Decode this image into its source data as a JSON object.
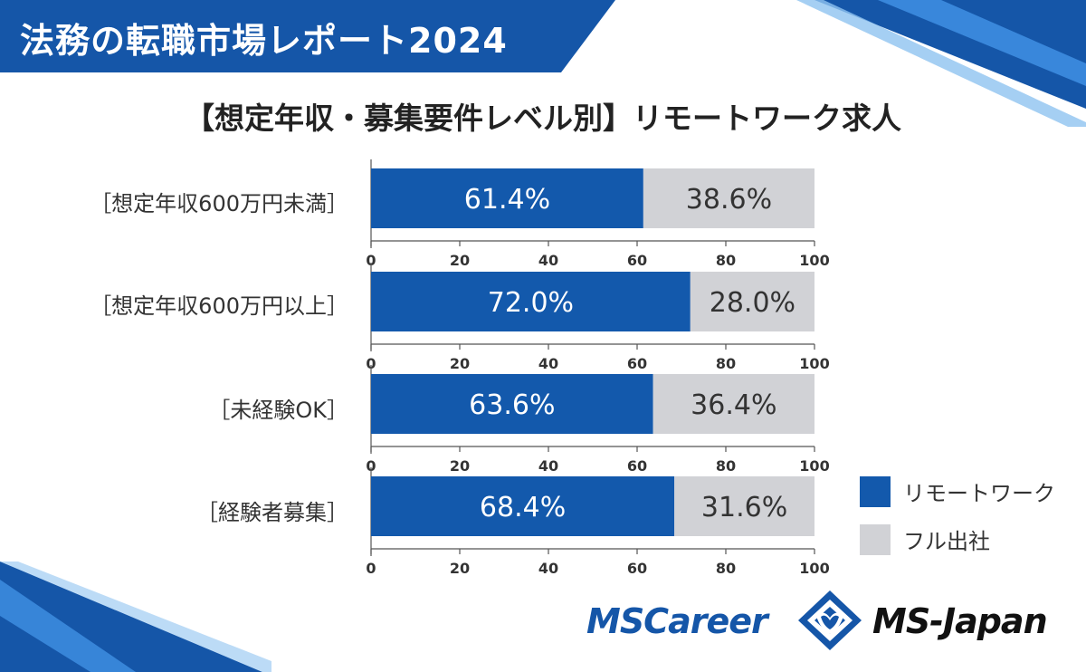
{
  "header": {
    "title": "法務の転職市場レポート2024",
    "subtitle": "【想定年収・募集要件レベル別】リモートワーク求人"
  },
  "colors": {
    "brand_blue": "#1556a8",
    "remote": "#1359ac",
    "office": "#d1d2d6"
  },
  "chart_data": {
    "type": "bar",
    "orientation": "horizontal",
    "stacked": true,
    "categories": [
      "［想定年収600万円未満］",
      "［想定年収600万円以上］",
      "［未経験OK］",
      "［経験者募集］"
    ],
    "series": [
      {
        "name": "リモートワーク",
        "values": [
          61.4,
          72.0,
          63.6,
          68.4
        ],
        "labels": [
          "61.4%",
          "72.0%",
          "63.6%",
          "68.4%"
        ]
      },
      {
        "name": "フル出社",
        "values": [
          38.6,
          28.0,
          36.4,
          31.6
        ],
        "labels": [
          "38.6%",
          "28.0%",
          "36.4%",
          "31.6%"
        ]
      }
    ],
    "xlim": [
      0,
      100
    ],
    "xticks": [
      "0",
      "20",
      "40",
      "60",
      "80",
      "100"
    ],
    "legend_position": "bottom-right",
    "grid": false
  },
  "logos": {
    "left": "MSCareer",
    "right": "MS-Japan"
  }
}
